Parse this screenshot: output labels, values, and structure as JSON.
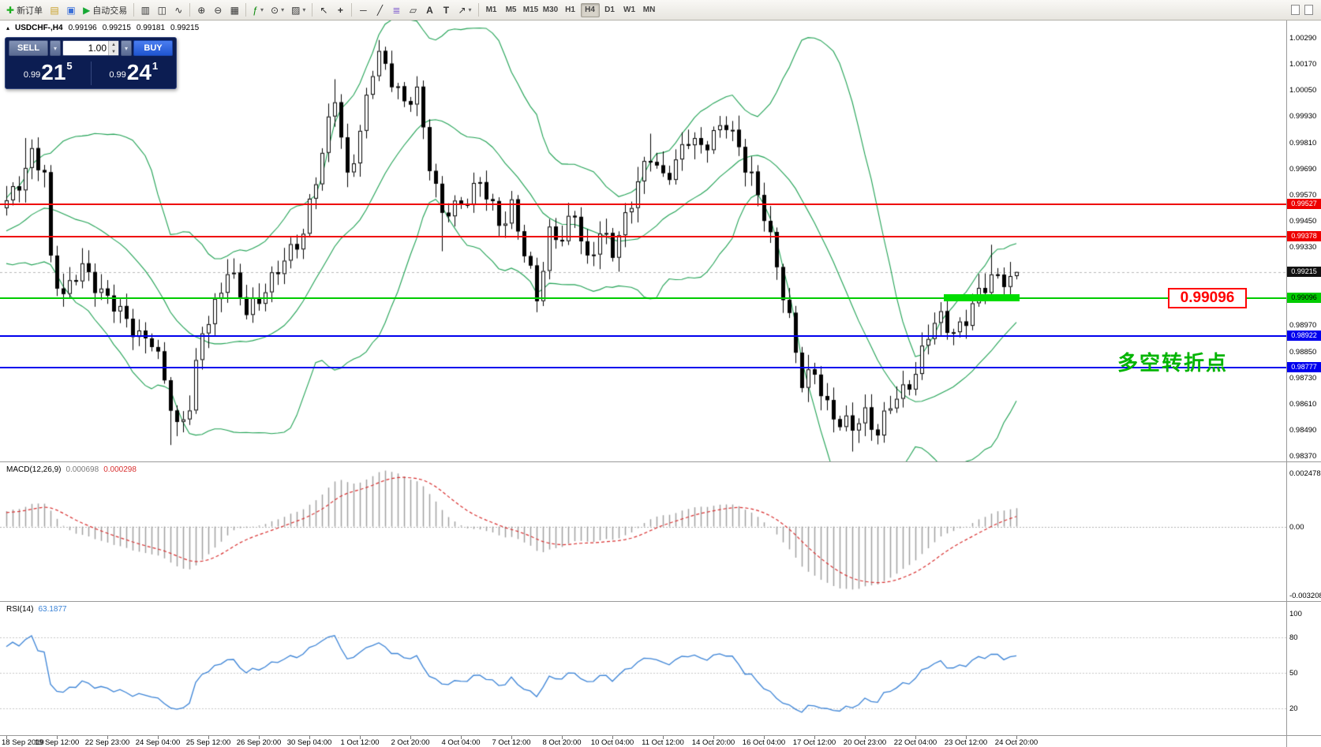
{
  "toolbar": {
    "new_order": "新订单",
    "autotrade": "自动交易",
    "timeframes": [
      "M1",
      "M5",
      "M15",
      "M30",
      "H1",
      "H4",
      "D1",
      "W1",
      "MN"
    ],
    "active_timeframe": "H4"
  },
  "symbol_header": {
    "symbol": "USDCHF-,H4",
    "open": "0.99196",
    "high": "0.99215",
    "low": "0.99181",
    "close": "0.99215"
  },
  "trade_panel": {
    "sell_label": "SELL",
    "buy_label": "BUY",
    "volume": "1.00",
    "sell_price": {
      "small": "0.99",
      "big": "21",
      "sup": "5"
    },
    "buy_price": {
      "small": "0.99",
      "big": "24",
      "sup": "1"
    }
  },
  "annotations": {
    "price_box": "0.99096",
    "turning_point_text": "多空转折点",
    "colors": {
      "highlight_green": "#00dd00",
      "box_red": "#ff0000",
      "text_green": "#00b400"
    }
  },
  "macd_panel": {
    "title": "MACD(12,26,9)",
    "value_main": "0.000698",
    "value_signal": "0.000298",
    "scale": {
      "top": "0.002478",
      "zero": "0.00",
      "bottom": "-0.003208"
    },
    "range": [
      -0.003208,
      0.002478
    ]
  },
  "rsi_panel": {
    "title": "RSI(14)",
    "value": "63.1877",
    "scale": [
      "100",
      "80",
      "50",
      "20"
    ],
    "levels": [
      80,
      50,
      20
    ]
  },
  "chart_data": {
    "type": "candlestick",
    "symbol": "USDCHF",
    "timeframe": "H4",
    "price_axis_range": [
      0.9837,
      1.0029
    ],
    "price_axis_ticks": [
      "1.00290",
      "1.00170",
      "1.00050",
      "0.99930",
      "0.99810",
      "0.99690",
      "0.99570",
      "0.99450",
      "0.99330",
      "0.99210",
      "0.99090",
      "0.98970",
      "0.98850",
      "0.98730",
      "0.98610",
      "0.98490",
      "0.98370"
    ],
    "time_labels": [
      "18 Sep 2019",
      "19 Sep 12:00",
      "22 Sep 23:00",
      "24 Sep 04:00",
      "25 Sep 12:00",
      "26 Sep 20:00",
      "30 Sep 04:00",
      "1 Oct 12:00",
      "2 Oct 20:00",
      "4 Oct 04:00",
      "7 Oct 12:00",
      "8 Oct 20:00",
      "10 Oct 04:00",
      "11 Oct 12:00",
      "14 Oct 20:00",
      "16 Oct 04:00",
      "17 Oct 12:00",
      "20 Oct 23:00",
      "22 Oct 04:00",
      "23 Oct 12:00",
      "24 Oct 20:00"
    ],
    "candles_per_time_label": 8,
    "num_candles": 161,
    "price_path": [
      [
        0,
        0.9952
      ],
      [
        2,
        0.9962
      ],
      [
        4,
        0.9975
      ],
      [
        6,
        0.9968
      ],
      [
        7,
        0.993
      ],
      [
        9,
        0.9912
      ],
      [
        12,
        0.992
      ],
      [
        16,
        0.991
      ],
      [
        20,
        0.9898
      ],
      [
        23,
        0.9888
      ],
      [
        25,
        0.9868
      ],
      [
        27,
        0.985
      ],
      [
        29,
        0.9862
      ],
      [
        31,
        0.9895
      ],
      [
        33,
        0.9908
      ],
      [
        35,
        0.9922
      ],
      [
        38,
        0.99
      ],
      [
        41,
        0.9916
      ],
      [
        44,
        0.9928
      ],
      [
        47,
        0.994
      ],
      [
        50,
        0.9972
      ],
      [
        52,
        1.0003
      ],
      [
        54,
        0.9968
      ],
      [
        56,
        0.9986
      ],
      [
        58,
        1.0015
      ],
      [
        59,
        1.0022
      ],
      [
        61,
        1.0008
      ],
      [
        63,
        0.9995
      ],
      [
        65,
        1.0006
      ],
      [
        67,
        0.9975
      ],
      [
        69,
        0.9948
      ],
      [
        72,
        0.9952
      ],
      [
        75,
        0.996
      ],
      [
        78,
        0.9946
      ],
      [
        80,
        0.9955
      ],
      [
        82,
        0.993
      ],
      [
        84,
        0.9908
      ],
      [
        86,
        0.9938
      ],
      [
        88,
        0.9935
      ],
      [
        90,
        0.995
      ],
      [
        92,
        0.993
      ],
      [
        94,
        0.994
      ],
      [
        96,
        0.9928
      ],
      [
        98,
        0.9945
      ],
      [
        100,
        0.9962
      ],
      [
        102,
        0.9975
      ],
      [
        104,
        0.9968
      ],
      [
        106,
        0.9974
      ],
      [
        108,
        0.998
      ],
      [
        110,
        0.9976
      ],
      [
        112,
        0.9985
      ],
      [
        114,
        0.999
      ],
      [
        116,
        0.998
      ],
      [
        118,
        0.9968
      ],
      [
        120,
        0.9946
      ],
      [
        122,
        0.992
      ],
      [
        124,
        0.99
      ],
      [
        126,
        0.9872
      ],
      [
        128,
        0.9876
      ],
      [
        130,
        0.9862
      ],
      [
        132,
        0.9852
      ],
      [
        134,
        0.9846
      ],
      [
        136,
        0.9855
      ],
      [
        138,
        0.985
      ],
      [
        140,
        0.9862
      ],
      [
        142,
        0.9868
      ],
      [
        144,
        0.9876
      ],
      [
        146,
        0.989
      ],
      [
        148,
        0.9898
      ],
      [
        150,
        0.9896
      ],
      [
        152,
        0.9902
      ],
      [
        154,
        0.9912
      ],
      [
        156,
        0.992
      ],
      [
        158,
        0.9916
      ],
      [
        160,
        0.99215
      ]
    ],
    "spikes": [
      {
        "i": 3,
        "h": 0.9983
      },
      {
        "i": 26,
        "l": 0.9842
      },
      {
        "i": 52,
        "h": 1.001
      },
      {
        "i": 59,
        "h": 1.0028
      },
      {
        "i": 69,
        "l": 0.9931
      },
      {
        "i": 84,
        "l": 0.9903
      },
      {
        "i": 102,
        "h": 0.9985
      },
      {
        "i": 114,
        "h": 0.9993
      },
      {
        "i": 134,
        "l": 0.9839
      },
      {
        "i": 156,
        "h": 0.9934
      }
    ],
    "last_candle": {
      "o": 0.99196,
      "h": 0.99215,
      "l": 0.99181,
      "c": 0.99215
    },
    "levels": [
      {
        "price": 0.99527,
        "label": "0.99527",
        "line_color": "#ee0000",
        "tag_bg": "#ee0000",
        "tag_fg": "#ffffff",
        "kind": "resistance"
      },
      {
        "price": 0.99378,
        "label": "0.99378",
        "line_color": "#ee0000",
        "tag_bg": "#ee0000",
        "tag_fg": "#ffffff",
        "kind": "resistance"
      },
      {
        "price": 0.99215,
        "label": "0.99215",
        "line_color": "none",
        "tag_bg": "#111111",
        "tag_fg": "#ffffff",
        "kind": "current-price"
      },
      {
        "price": 0.99096,
        "label": "0.99096",
        "line_color": "#00cc00",
        "tag_bg": "#00cc00",
        "tag_fg": "#000000",
        "kind": "pivot"
      },
      {
        "price": 0.98922,
        "label": "0.98922",
        "line_color": "#0000ee",
        "tag_bg": "#0000ee",
        "tag_fg": "#ffffff",
        "kind": "support"
      },
      {
        "price": 0.98777,
        "label": "0.98777",
        "line_color": "#0000ee",
        "tag_bg": "#0000ee",
        "tag_fg": "#ffffff",
        "kind": "support"
      }
    ],
    "highlight_bar": {
      "from_index": 149,
      "to_index": 160,
      "price": 0.99096
    },
    "indicators": {
      "bollinger": {
        "period": 20,
        "deviation": 2,
        "color": "#1fa153"
      },
      "macd": {
        "fast": 12,
        "slow": 26,
        "signal": 9,
        "hist_color": "#a0a0a0",
        "signal_color": "#d83030"
      },
      "rsi": {
        "period": 14,
        "color": "#3b83d6"
      }
    }
  }
}
